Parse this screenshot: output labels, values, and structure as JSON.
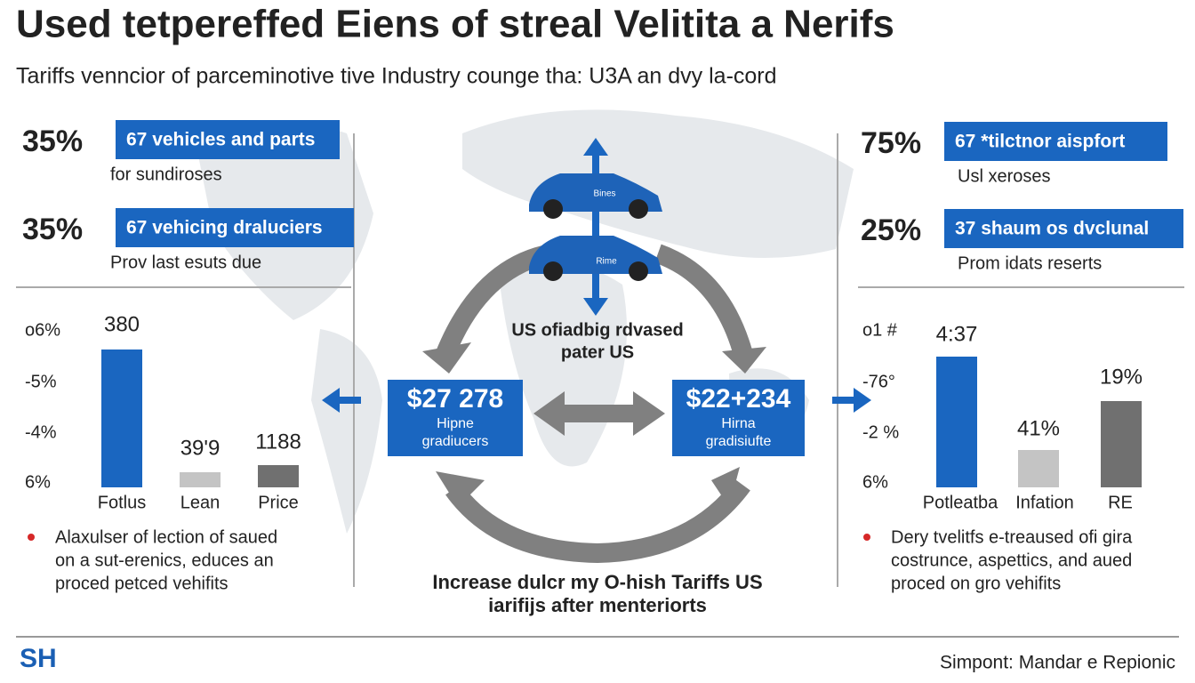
{
  "header": {
    "title": "Used tetpereffed Eiens of streal Velitita a Nerifs",
    "subtitle": "Tariffs venncior of parceminotive tive Industry counge tha: U3A an dvy la-cord"
  },
  "left": {
    "stats": [
      {
        "value": "35%",
        "tag": "67 vehicles and parts",
        "note": "for sundiroses"
      },
      {
        "value": "35%",
        "tag": "67 vehicing draluciers",
        "note": "Prov last esuts due"
      }
    ],
    "chart": {
      "axis_labels": [
        "o6%",
        "-5%",
        "-4%",
        "6%"
      ],
      "bar_labels": [
        "380",
        "39'9",
        "1188"
      ],
      "categories": [
        "Fotlus",
        "Lean",
        "Price"
      ]
    },
    "bullet": [
      "Alaxulser of lection of saued",
      "on a sut-erenics, educes an",
      "proced petced vehifits"
    ]
  },
  "right": {
    "stats": [
      {
        "value": "75%",
        "tag": "67 *tilctnor aispfort",
        "note": "Usl xeroses"
      },
      {
        "value": "25%",
        "tag": "37 shaum os dvclunal",
        "note": "Prom idats reserts"
      }
    ],
    "chart": {
      "axis_labels": [
        "o1 #",
        "-76°",
        "-2 %",
        "6%"
      ],
      "bar_labels": [
        "4:37",
        "41%",
        "19%"
      ],
      "categories": [
        "Potleatba",
        "Infation",
        "RE"
      ]
    },
    "bullet": [
      "Dery tvelitfs e-treaused ofi gira",
      "costrunce, aspettics, and aued",
      "proced on gro vehifits"
    ]
  },
  "center": {
    "car_labels": [
      "Bines",
      "Rime"
    ],
    "caption": [
      "US ofiadbig rdvased",
      "pater US"
    ],
    "boxes": [
      {
        "price": "$27 278",
        "line1": "Hipne",
        "line2": "gradiucers"
      },
      {
        "price": "$22+234",
        "line1": "Hirna",
        "line2": "gradisiufte"
      }
    ],
    "bottom": [
      "Increase dulcr my O-hish Tariffs US",
      "iarifijs after menteriorts"
    ]
  },
  "footer": {
    "logo": "SH",
    "source": "Simpont: Mandar e Repionic"
  }
}
